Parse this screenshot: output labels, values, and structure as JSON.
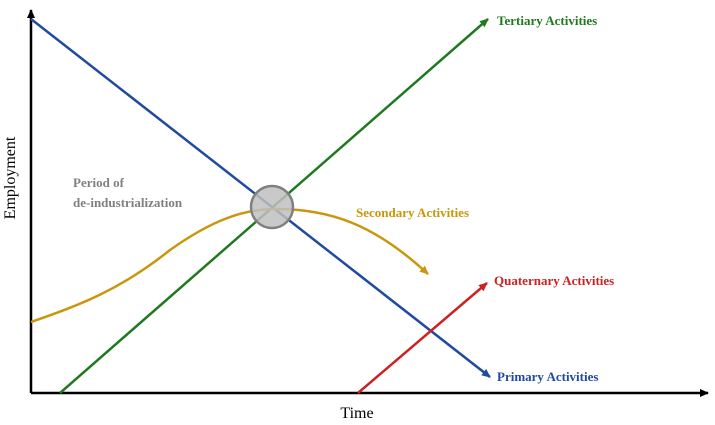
{
  "axes": {
    "x_label": "Time",
    "y_label": "Employment"
  },
  "annotation": {
    "line1": "Period of",
    "line2": "de-industrialization"
  },
  "series": {
    "tertiary": {
      "label": "Tertiary Activities",
      "color": "#1f7a1f"
    },
    "secondary": {
      "label": "Secondary Activities",
      "color": "#c9960c"
    },
    "quaternary": {
      "label": "Quaternary Activities",
      "color": "#cc2222"
    },
    "primary": {
      "label": "Primary Activities",
      "color": "#1f4aa0"
    }
  },
  "colors": {
    "axis": "#000000",
    "annotation_text": "#808080",
    "crossover_fill": "#c0c0c0",
    "crossover_stroke": "#808080"
  }
}
